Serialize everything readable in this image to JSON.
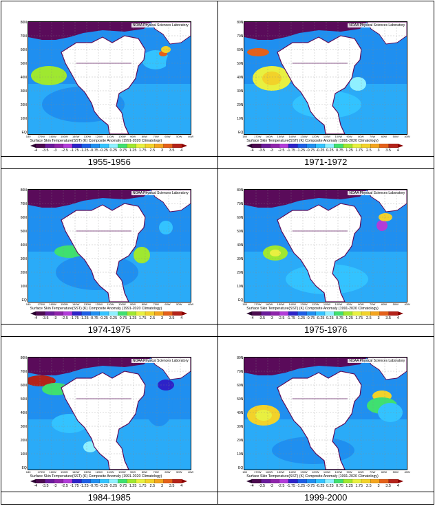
{
  "panels": [
    {
      "caption": "1955-1956",
      "variant": 1
    },
    {
      "caption": "1971-1972",
      "variant": 2
    },
    {
      "caption": "1974-1975",
      "variant": 3
    },
    {
      "caption": "1975-1976",
      "variant": 4
    },
    {
      "caption": "1984-1985",
      "variant": 5
    },
    {
      "caption": "1999-2000",
      "variant": 6
    }
  ],
  "map": {
    "lab_label": "NOAA Physical Sciences Laboratory",
    "title": "Surface Skin Temperature(SST) (K) Composite Anomaly (1991-2020 Climatology)",
    "lat_labels": [
      "80N",
      "70N",
      "60N",
      "50N",
      "40N",
      "30N",
      "20N",
      "10N",
      "EQ"
    ],
    "lon_labels": [
      "180",
      "170W",
      "160W",
      "150W",
      "140W",
      "130W",
      "120W",
      "110W",
      "100W",
      "90W",
      "80W",
      "70W",
      "60W",
      "50W",
      "40W"
    ],
    "colorbar_labels": [
      "-4",
      "-3.5",
      "-3",
      "-2.5",
      "-1.75",
      "-1.25",
      "-0.75",
      "-0.25",
      "0.25",
      "0.75",
      "1.25",
      "1.75",
      "2.5",
      "3",
      "3.5",
      "4"
    ],
    "colorbar_colors": [
      "#4b0b4f",
      "#6a1b9a",
      "#8e24aa",
      "#b23cd9",
      "#2d22c8",
      "#1d5de5",
      "#1f8ff0",
      "#33c3ff",
      "#8ff0ff",
      "#3fe070",
      "#9fe830",
      "#e8f040",
      "#f2d22a",
      "#f3a41e",
      "#e4601a",
      "#b4231a"
    ],
    "land_color": "#ffffff",
    "ice_color": "#5a0b5a"
  }
}
